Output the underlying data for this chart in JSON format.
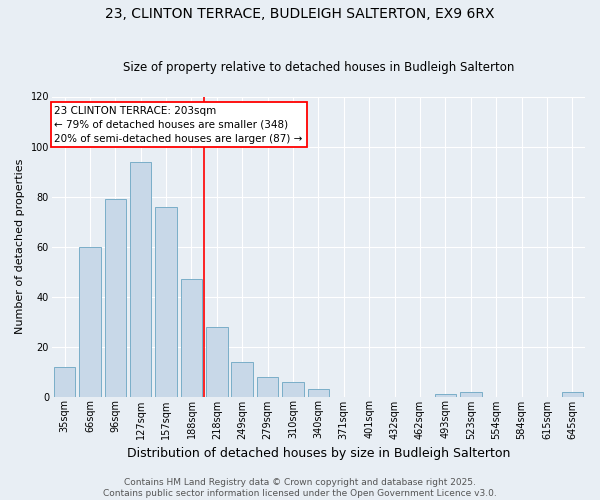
{
  "title": "23, CLINTON TERRACE, BUDLEIGH SALTERTON, EX9 6RX",
  "subtitle": "Size of property relative to detached houses in Budleigh Salterton",
  "xlabel": "Distribution of detached houses by size in Budleigh Salterton",
  "ylabel": "Number of detached properties",
  "categories": [
    "35sqm",
    "66sqm",
    "96sqm",
    "127sqm",
    "157sqm",
    "188sqm",
    "218sqm",
    "249sqm",
    "279sqm",
    "310sqm",
    "340sqm",
    "371sqm",
    "401sqm",
    "432sqm",
    "462sqm",
    "493sqm",
    "523sqm",
    "554sqm",
    "584sqm",
    "615sqm",
    "645sqm"
  ],
  "values": [
    12,
    60,
    79,
    94,
    76,
    47,
    28,
    14,
    8,
    6,
    3,
    0,
    0,
    0,
    0,
    1,
    2,
    0,
    0,
    0,
    2
  ],
  "bar_color": "#c8d8e8",
  "bar_edgecolor": "#7aaec8",
  "vline_x": 5.5,
  "vline_color": "red",
  "annotation_title": "23 CLINTON TERRACE: 203sqm",
  "annotation_line1": "← 79% of detached houses are smaller (348)",
  "annotation_line2": "20% of semi-detached houses are larger (87) →",
  "annotation_box_color": "white",
  "annotation_box_edgecolor": "red",
  "ylim": [
    0,
    120
  ],
  "yticks": [
    0,
    20,
    40,
    60,
    80,
    100,
    120
  ],
  "footer1": "Contains HM Land Registry data © Crown copyright and database right 2025.",
  "footer2": "Contains public sector information licensed under the Open Government Licence v3.0.",
  "background_color": "#e8eef4",
  "grid_color": "white",
  "title_fontsize": 10,
  "subtitle_fontsize": 8.5,
  "xlabel_fontsize": 9,
  "ylabel_fontsize": 8,
  "tick_fontsize": 7,
  "annot_fontsize": 7.5,
  "footer_fontsize": 6.5
}
